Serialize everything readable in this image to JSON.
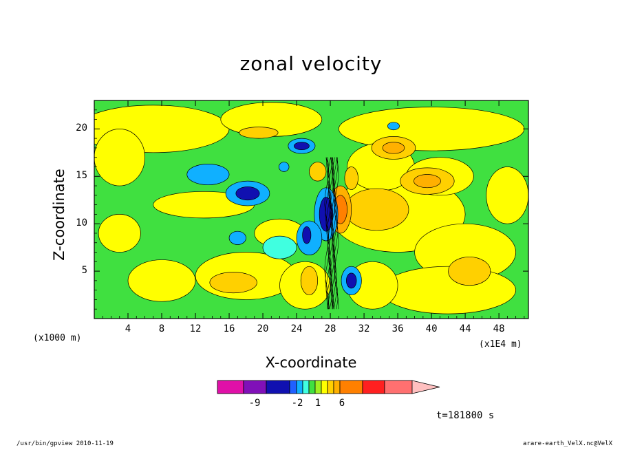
{
  "chart_data": {
    "type": "heatmap",
    "title": "zonal velocity",
    "xlabel": "X-coordinate",
    "ylabel": "Z-coordinate",
    "x_unit_left": "(x1000 m)",
    "x_unit_right": "(x1E4 m)",
    "xlim": [
      0,
      51.5
    ],
    "ylim": [
      0,
      23
    ],
    "x_ticks": [
      "4",
      "8",
      "12",
      "16",
      "20",
      "24",
      "28",
      "32",
      "36",
      "40",
      "44",
      "48"
    ],
    "y_ticks": [
      "5",
      "10",
      "15",
      "20"
    ],
    "colorbar": {
      "colors": [
        "#e010a8",
        "#8010b8",
        "#1010b0",
        "#2060ff",
        "#10b0ff",
        "#40ffe0",
        "#40e040",
        "#a0f020",
        "#ffff00",
        "#ffd000",
        "#ffb000",
        "#ff8000",
        "#ff2020",
        "#ff7070",
        "#ffc0c0"
      ],
      "labels": [
        "-9",
        "-2",
        "1",
        "6"
      ],
      "extend": "max"
    },
    "time_label": "t=181800 s",
    "features": [
      {
        "x": 18.2,
        "z": 13.0,
        "value": -4
      },
      {
        "x": 24.6,
        "z": 18.2,
        "value": -5
      },
      {
        "x": 27.5,
        "z": 11.0,
        "value": -6
      },
      {
        "x": 29.0,
        "z": 11.5,
        "value": 5
      },
      {
        "x": 35.5,
        "z": 18.0,
        "value": 4
      },
      {
        "x": 39.5,
        "z": 14.5,
        "value": 3
      },
      {
        "x": 30.5,
        "z": 4.0,
        "value": -4
      },
      {
        "x": 16.5,
        "z": 3.8,
        "value": 2
      }
    ]
  },
  "footer": {
    "left": "/usr/bin/gpview   2010-11-19",
    "right": "arare-earth_VelX.nc@VelX"
  }
}
